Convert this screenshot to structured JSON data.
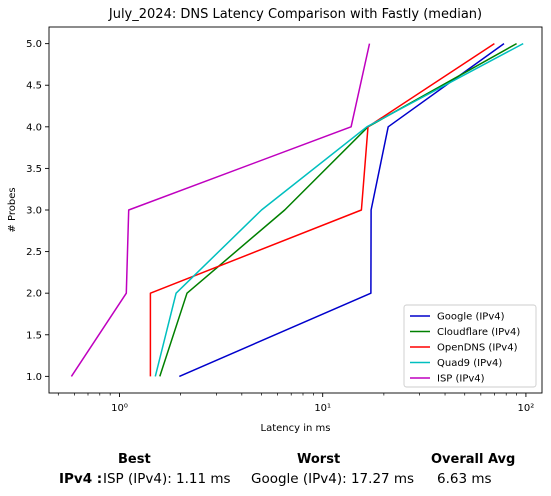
{
  "chart_data": {
    "type": "line",
    "title": "July_2024: DNS Latency Comparison with Fastly (median)",
    "xlabel": "Latency in ms",
    "ylabel": "# Probes",
    "xscale": "log",
    "xlim": [
      0.45,
      120
    ],
    "ylim": [
      0.8,
      5.2
    ],
    "xticks": [
      1,
      10,
      100
    ],
    "xtick_labels": [
      "10⁰",
      "10¹",
      "10²"
    ],
    "yticks": [
      1.0,
      1.5,
      2.0,
      2.5,
      3.0,
      3.5,
      4.0,
      4.5,
      5.0
    ],
    "ytick_labels": [
      "1.0",
      "1.5",
      "2.0",
      "2.5",
      "3.0",
      "3.5",
      "4.0",
      "4.5",
      "5.0"
    ],
    "grid": false,
    "legend_position": "bottom-right",
    "series": [
      {
        "name": "Google (IPv4)",
        "color": "#0000cc",
        "x": [
          1.97,
          17.27,
          17.3,
          21.0,
          78.0
        ],
        "y": [
          1,
          2,
          3,
          4,
          5
        ]
      },
      {
        "name": "Cloudflare (IPv4)",
        "color": "#008000",
        "x": [
          1.58,
          2.15,
          6.5,
          16.7,
          90.0
        ],
        "y": [
          1,
          2,
          3,
          4,
          5
        ]
      },
      {
        "name": "OpenDNS (IPv4)",
        "color": "#ff0000",
        "x": [
          1.42,
          1.42,
          15.5,
          16.7,
          70.0
        ],
        "y": [
          1,
          2,
          3,
          4,
          5
        ]
      },
      {
        "name": "Quad9 (IPv4)",
        "color": "#00bfbf",
        "x": [
          1.5,
          1.9,
          5.0,
          16.5,
          97.0
        ],
        "y": [
          1,
          2,
          3,
          4,
          5
        ]
      },
      {
        "name": "ISP (IPv4)",
        "color": "#bf00bf",
        "x": [
          0.58,
          1.08,
          1.11,
          13.8,
          17.0
        ],
        "y": [
          1,
          2,
          3,
          4,
          5
        ]
      }
    ]
  },
  "summary": {
    "headers": {
      "best": "Best",
      "worst": "Worst",
      "overall": "Overall Avg"
    },
    "row_label": "IPv4 :",
    "best_value": "ISP (IPv4): 1.11 ms",
    "worst_value": "Google (IPv4): 17.27 ms",
    "overall_value": "6.63 ms"
  }
}
